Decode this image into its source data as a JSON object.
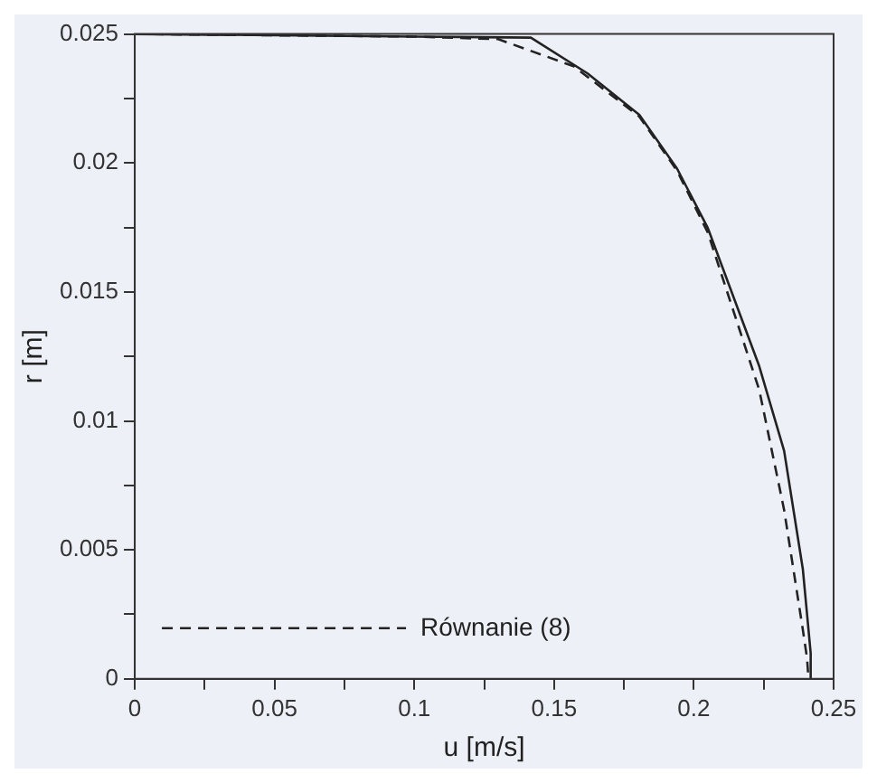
{
  "chart_data": {
    "type": "line",
    "xlabel": "u [m/s]",
    "ylabel": "r [m]",
    "xlim": [
      0,
      0.25
    ],
    "ylim": [
      0,
      0.025
    ],
    "xticks": [
      0,
      {
        "value": 0.025,
        "label": null
      },
      0.05,
      {
        "value": 0.075,
        "label": null
      },
      0.1,
      {
        "value": 0.125,
        "label": null
      },
      0.15,
      {
        "value": 0.175,
        "label": null
      },
      0.2,
      {
        "value": 0.225,
        "label": null
      },
      0.25
    ],
    "yticks": [
      0,
      {
        "value": 0.0025,
        "label": null
      },
      0.005,
      {
        "value": 0.0075,
        "label": null
      },
      0.01,
      {
        "value": 0.0125,
        "label": null
      },
      0.015,
      {
        "value": 0.0175,
        "label": null
      },
      0.02,
      {
        "value": 0.0225,
        "label": null
      },
      0.025
    ],
    "grid": false,
    "legend": "bottom left",
    "series": [
      {
        "color": "#222222",
        "line_style": "solid",
        "x": [
          0,
          0.1,
          0.1417,
          0.162,
          0.1805,
          0.194,
          0.205,
          0.2234,
          0.2323,
          0.239,
          0.2418,
          0.2418
        ],
        "values": [
          0.025,
          0.0249,
          0.02486,
          0.02347,
          0.02187,
          0.01978,
          0.01748,
          0.01212,
          0.00884,
          0.00425,
          0.001,
          0
        ]
      },
      {
        "name": "Równanie (8)",
        "color": "#222222",
        "line_style": "dashed",
        "x": [
          0,
          0.1,
          0.13,
          0.157,
          0.1805,
          0.194,
          0.205,
          0.2234,
          0.2323,
          0.239,
          0.2405,
          0.241
        ],
        "values": [
          0.025,
          0.0249,
          0.0248,
          0.02375,
          0.0218,
          0.0197,
          0.0173,
          0.0112,
          0.00655,
          0.0019,
          0.0008,
          0
        ]
      }
    ]
  }
}
